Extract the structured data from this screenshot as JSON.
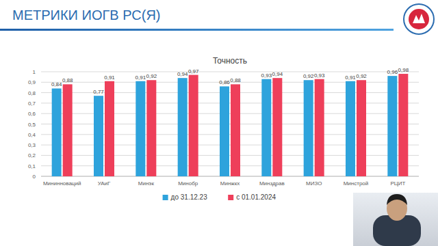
{
  "header": {
    "title": "МЕТРИКИ ИОГВ РС(Я)"
  },
  "chart_data": {
    "type": "bar",
    "title": "Точность",
    "categories": [
      "Мининноваций",
      "УАиГ",
      "Минэк",
      "Минобр",
      "Минжкх",
      "Минздрав",
      "МИЗО",
      "Минстрой",
      "РЦИТ"
    ],
    "series": [
      {
        "name": "до 31.12.23",
        "color": "#2ea3dc",
        "values": [
          0.84,
          0.77,
          0.91,
          0.94,
          0.86,
          0.93,
          0.92,
          0.91,
          0.96
        ],
        "value_labels": [
          "0,84",
          "0,77",
          "0,91",
          "0,94",
          "0,86",
          "0,93",
          "0,92",
          "0,91",
          "0,96"
        ]
      },
      {
        "name": "с 01.01.2024",
        "color": "#ee3f5a",
        "values": [
          0.88,
          0.91,
          0.92,
          0.97,
          0.88,
          0.94,
          0.93,
          0.92,
          0.98
        ],
        "value_labels": [
          "0,88",
          "0,91",
          "0,92",
          "0,97",
          "0,88",
          "0,94",
          "0,93",
          "0,92",
          "0,98"
        ]
      }
    ],
    "ylim": [
      0,
      1
    ],
    "yticks": [
      0,
      {
        "value": 0.1,
        "label": "0,1"
      },
      {
        "value": 0.2,
        "label": "0,2"
      },
      {
        "value": 0.3,
        "label": "0,3"
      },
      {
        "value": 0.4,
        "label": "0,4"
      },
      {
        "value": 0.5,
        "label": "0,5"
      },
      {
        "value": 0.6,
        "label": "0,6"
      },
      {
        "value": 0.7,
        "label": "0,7"
      },
      {
        "value": 0.8,
        "label": "0,8"
      },
      {
        "value": 0.9,
        "label": "0,9"
      },
      1
    ],
    "grid": true,
    "legend": "bottom",
    "data_labels": true
  }
}
